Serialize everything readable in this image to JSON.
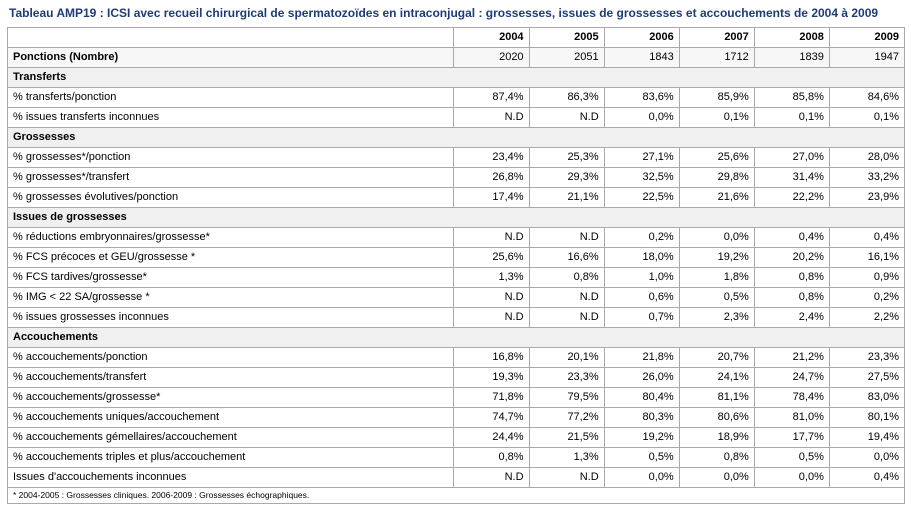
{
  "title": "Tableau AMP19 : ICSI avec recueil chirurgical de spermatozoïdes en intraconjugal : grossesses, issues de grossesses et accouchements de 2004 à 2009",
  "years": [
    "2004",
    "2005",
    "2006",
    "2007",
    "2008",
    "2009"
  ],
  "ponctions": {
    "label": "Ponctions (Nombre)",
    "values": [
      "2020",
      "2051",
      "1843",
      "1712",
      "1839",
      "1947"
    ]
  },
  "sections": [
    {
      "title": "Transferts",
      "rows": [
        {
          "label": "% transferts/ponction",
          "values": [
            "87,4%",
            "86,3%",
            "83,6%",
            "85,9%",
            "85,8%",
            "84,6%"
          ]
        },
        {
          "label": "% issues transferts inconnues",
          "values": [
            "N.D",
            "N.D",
            "0,0%",
            "0,1%",
            "0,1%",
            "0,1%"
          ]
        }
      ]
    },
    {
      "title": "Grossesses",
      "rows": [
        {
          "label": "% grossesses*/ponction",
          "values": [
            "23,4%",
            "25,3%",
            "27,1%",
            "25,6%",
            "27,0%",
            "28,0%"
          ]
        },
        {
          "label": "% grossesses*/transfert",
          "values": [
            "26,8%",
            "29,3%",
            "32,5%",
            "29,8%",
            "31,4%",
            "33,2%"
          ]
        },
        {
          "label": "% grossesses évolutives/ponction",
          "values": [
            "17,4%",
            "21,1%",
            "22,5%",
            "21,6%",
            "22,2%",
            "23,9%"
          ]
        }
      ]
    },
    {
      "title": "Issues de grossesses",
      "rows": [
        {
          "label": "% réductions embryonnaires/grossesse*",
          "values": [
            "N.D",
            "N.D",
            "0,2%",
            "0,0%",
            "0,4%",
            "0,4%"
          ]
        },
        {
          "label": "% FCS précoces et GEU/grossesse *",
          "values": [
            "25,6%",
            "16,6%",
            "18,0%",
            "19,2%",
            "20,2%",
            "16,1%"
          ]
        },
        {
          "label": "% FCS tardives/grossesse*",
          "values": [
            "1,3%",
            "0,8%",
            "1,0%",
            "1,8%",
            "0,8%",
            "0,9%"
          ]
        },
        {
          "label": "% IMG < 22 SA/grossesse *",
          "values": [
            "N.D",
            "N.D",
            "0,6%",
            "0,5%",
            "0,8%",
            "0,2%"
          ]
        },
        {
          "label": "% issues grossesses inconnues",
          "values": [
            "N.D",
            "N.D",
            "0,7%",
            "2,3%",
            "2,4%",
            "2,2%"
          ]
        }
      ]
    },
    {
      "title": "Accouchements",
      "rows": [
        {
          "label": "% accouchements/ponction",
          "values": [
            "16,8%",
            "20,1%",
            "21,8%",
            "20,7%",
            "21,2%",
            "23,3%"
          ]
        },
        {
          "label": "% accouchements/transfert",
          "values": [
            "19,3%",
            "23,3%",
            "26,0%",
            "24,1%",
            "24,7%",
            "27,5%"
          ]
        },
        {
          "label": "% accouchements/grossesse*",
          "values": [
            "71,8%",
            "79,5%",
            "80,4%",
            "81,1%",
            "78,4%",
            "83,0%"
          ]
        },
        {
          "label": "% accouchements uniques/accouchement",
          "values": [
            "74,7%",
            "77,2%",
            "80,3%",
            "80,6%",
            "81,0%",
            "80,1%"
          ]
        },
        {
          "label": "% accouchements gémellaires/accouchement",
          "values": [
            "24,4%",
            "21,5%",
            "19,2%",
            "18,9%",
            "17,7%",
            "19,4%"
          ]
        },
        {
          "label": "% accouchements triples et plus/accouchement",
          "values": [
            "0,8%",
            "1,3%",
            "0,5%",
            "0,8%",
            "0,5%",
            "0,0%"
          ]
        },
        {
          "label": "Issues d'accouchements inconnues",
          "values": [
            "N.D",
            "N.D",
            "0,0%",
            "0,0%",
            "0,0%",
            "0,4%"
          ]
        }
      ]
    }
  ],
  "footnote": "* 2004-2005 : Grossesses cliniques. 2006-2009 : Grossesses échographiques."
}
